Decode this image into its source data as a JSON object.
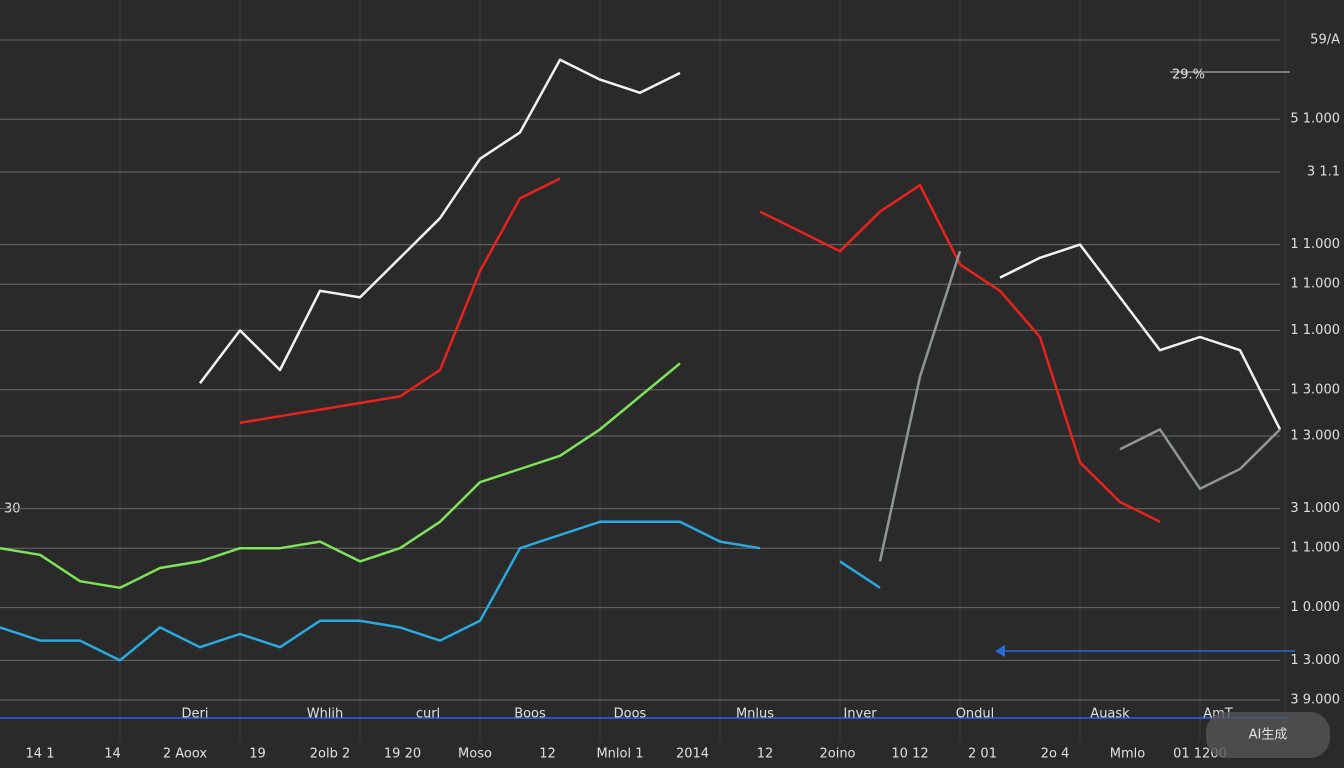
{
  "chart_data": {
    "type": "line",
    "title": "29.%",
    "left_label": "30",
    "watermark": "AI生成",
    "categories": [
      "Deri",
      "Whlih",
      "curl",
      "Boos",
      "Doos",
      "Mnlus",
      "Inver",
      "Ondul",
      "Auask",
      "AmT"
    ],
    "footer_labels": [
      "14 1",
      "14",
      "2 Aoox",
      "19",
      "2olb 2",
      "19 20",
      "Moso",
      "12",
      "Mnlol 1",
      "2014",
      "12",
      "2oino",
      "10 12",
      "2 01",
      "2o 4",
      "Mmlo",
      "01 1200"
    ],
    "x": [
      0,
      1,
      2,
      3,
      4,
      5,
      6,
      7,
      8,
      9,
      10,
      11,
      12,
      13,
      14,
      15,
      16,
      17,
      18,
      19,
      20,
      21,
      22,
      23,
      24,
      25,
      26,
      27,
      28,
      29,
      30,
      31,
      32
    ],
    "xlim": [
      0,
      32
    ],
    "ylim": [
      0,
      100
    ],
    "yticks": [
      {
        "value": 100,
        "label": "59/A"
      },
      {
        "value": 88,
        "label": "5 1.000"
      },
      {
        "value": 80,
        "label": "3 1.1"
      },
      {
        "value": 69,
        "label": "1 1.000"
      },
      {
        "value": 63,
        "label": "1 1.000"
      },
      {
        "value": 56,
        "label": "1 1.000"
      },
      {
        "value": 47,
        "label": "1 3.000"
      },
      {
        "value": 40,
        "label": "1 3.000"
      },
      {
        "value": 29,
        "label": "3 1.000"
      },
      {
        "value": 23,
        "label": "1 1.000"
      },
      {
        "value": 14,
        "label": "1 0.000"
      },
      {
        "value": 6,
        "label": "1 3.000"
      },
      {
        "value": 0,
        "label": "3 9.000"
      }
    ],
    "grid": true,
    "series": [
      {
        "color": "#f2f2f2",
        "values": [
          null,
          null,
          null,
          null,
          null,
          48,
          56,
          50,
          62,
          61,
          67,
          73,
          82,
          86,
          97,
          94,
          92,
          95,
          null,
          null,
          null,
          null,
          null,
          null,
          null,
          64,
          67,
          69,
          61,
          53,
          55,
          53,
          41
        ]
      },
      {
        "color": "#e8231e",
        "values": [
          null,
          null,
          null,
          null,
          null,
          null,
          42,
          43,
          44,
          45,
          46,
          50,
          65,
          76,
          79,
          null,
          null,
          null,
          null,
          74,
          71,
          68,
          74,
          78,
          66,
          62,
          55,
          36,
          30,
          27,
          null,
          null,
          null
        ]
      },
      {
        "color": "#7ee25a",
        "values": [
          23,
          22,
          18,
          17,
          20,
          21,
          23,
          23,
          24,
          21,
          23,
          27,
          33,
          35,
          37,
          41,
          46,
          51,
          null,
          null,
          null,
          null,
          null,
          null,
          null,
          null,
          null,
          null,
          null,
          null,
          null,
          null,
          null
        ]
      },
      {
        "color": "#29a9e0",
        "values": [
          11,
          9,
          9,
          6,
          11,
          8,
          10,
          8,
          12,
          12,
          11,
          9,
          12,
          23,
          25,
          27,
          27,
          27,
          24,
          23,
          null,
          21,
          17,
          null,
          null,
          null,
          null,
          null,
          null,
          null,
          null,
          null,
          null
        ]
      },
      {
        "color": "#8f9696",
        "values": [
          null,
          null,
          null,
          null,
          null,
          null,
          null,
          null,
          null,
          null,
          null,
          null,
          null,
          null,
          null,
          null,
          null,
          null,
          null,
          null,
          null,
          null,
          21,
          49,
          68,
          null,
          null,
          null,
          38,
          41,
          32,
          35,
          41
        ]
      }
    ]
  }
}
